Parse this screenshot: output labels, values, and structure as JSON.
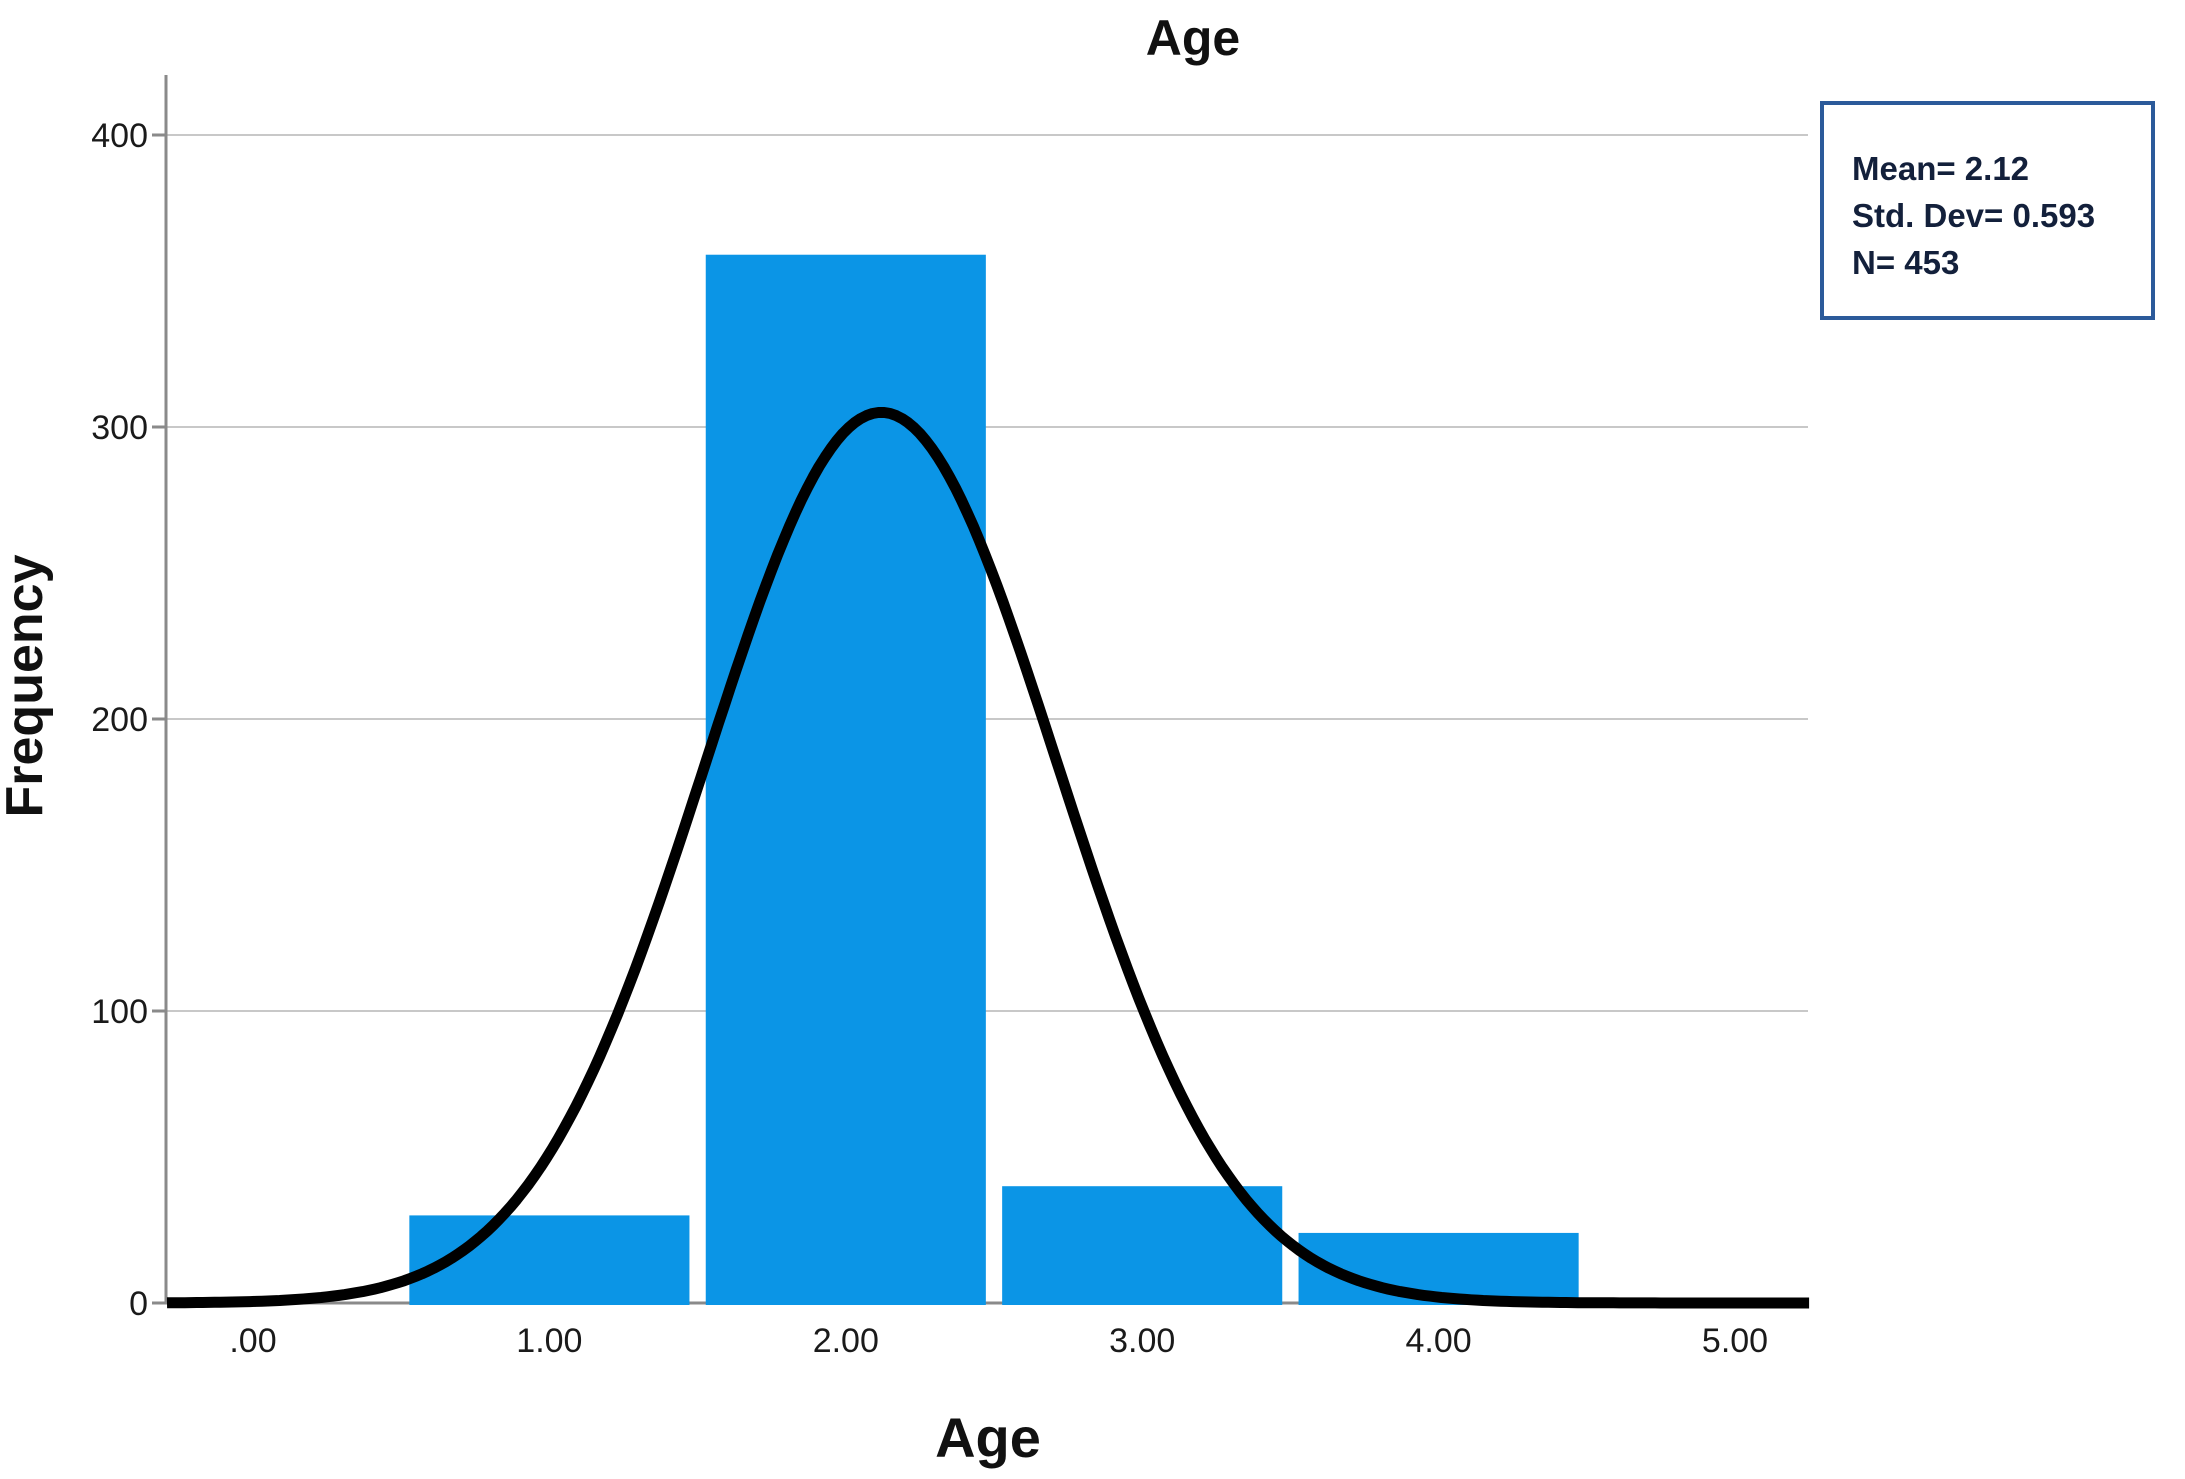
{
  "title": "Age",
  "axes": {
    "y_title": "Frequency",
    "x_title": "Age"
  },
  "stats_box": {
    "lines": [
      "Mean=  2.12",
      "Std. Dev= 0.593",
      "N= 453"
    ]
  },
  "colors": {
    "bar_fill": "#0b95e6",
    "curve": "#000000",
    "gridline": "#c8c8c8",
    "axis_line": "#8a8a8a",
    "stats_border": "#2b5a9a",
    "stats_text": "#13203b",
    "background": "#ffffff"
  },
  "chart_data": {
    "type": "bar",
    "subtype": "histogram_with_normal_curve",
    "title": "Age",
    "xlabel": "Age",
    "ylabel": "Frequency",
    "categories": [
      1.0,
      2.0,
      3.0,
      4.0
    ],
    "values": [
      30,
      359,
      40,
      24
    ],
    "bin_width": 1.0,
    "x_tick_labels": [
      ".00",
      "1.00",
      "2.00",
      "3.00",
      "4.00",
      "5.00"
    ],
    "x_tick_values": [
      0,
      1,
      2,
      3,
      4,
      5
    ],
    "y_tick_labels": [
      "0",
      "100",
      "200",
      "300",
      "400"
    ],
    "y_tick_values": [
      0,
      100,
      200,
      300,
      400
    ],
    "xlim": [
      -0.29,
      5.26
    ],
    "ylim": [
      0,
      425
    ],
    "grid": "horizontal",
    "legend": "none",
    "normal_curve": {
      "mean": 2.12,
      "sd": 0.593,
      "peak": 305
    },
    "stats": {
      "mean": "2.12",
      "std_dev": "0.593",
      "n": "453"
    }
  }
}
